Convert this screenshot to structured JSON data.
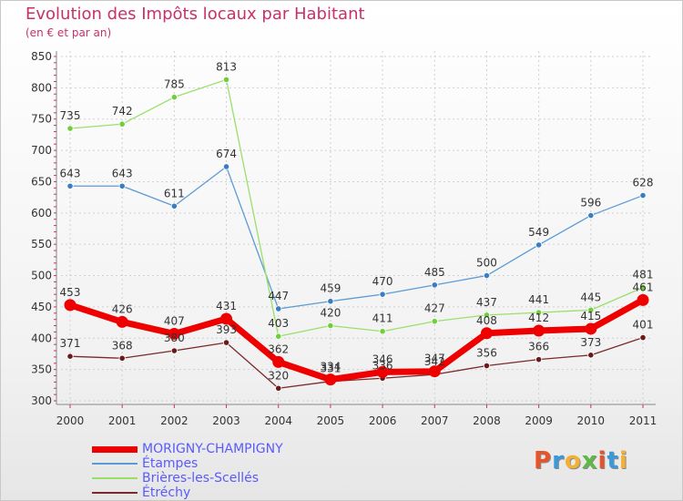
{
  "title": "Evolution des Impôts locaux par Habitant",
  "subtitle": "(en € et par an)",
  "logo_text": "Proxiti",
  "logo_colors": [
    "#e8542a",
    "#3a9ad9",
    "#f2b134",
    "#5fb848",
    "#e8542a",
    "#3a9ad9",
    "#f2b134"
  ],
  "chart_data": {
    "type": "line",
    "x": [
      "2000",
      "2001",
      "2002",
      "2003",
      "2004",
      "2005",
      "2006",
      "2007",
      "2008",
      "2009",
      "2010",
      "2011"
    ],
    "ylim": [
      300,
      850
    ],
    "yticks": [
      "300",
      "350",
      "400",
      "450",
      "500",
      "550",
      "600",
      "650",
      "700",
      "750",
      "800",
      "850"
    ],
    "grid": true,
    "legend_position": "bottom-left",
    "series": [
      {
        "name": "MORIGNY-CHAMPIGNY",
        "color": "#ee0000",
        "emphasis": true,
        "values": [
          453,
          426,
          407,
          431,
          362,
          334,
          346,
          347,
          408,
          412,
          415,
          461
        ],
        "labels": [
          "453",
          "426",
          "407",
          "431",
          "362",
          "334",
          "346",
          "347",
          "408",
          "412",
          "415",
          "461"
        ]
      },
      {
        "name": "Étampes",
        "color": "#5b9bd5",
        "point_color": "#3a7dc0",
        "emphasis": false,
        "values": [
          643,
          643,
          611,
          674,
          447,
          459,
          470,
          485,
          500,
          549,
          596,
          628
        ],
        "labels": [
          "643",
          "643",
          "611",
          "674",
          "447",
          "459",
          "470",
          "485",
          "500",
          "549",
          "596",
          "628"
        ]
      },
      {
        "name": "Brières-les-Scellés",
        "color": "#99e06a",
        "point_color": "#6fcf3a",
        "emphasis": false,
        "values": [
          735,
          742,
          785,
          813,
          403,
          420,
          411,
          427,
          437,
          441,
          445,
          481
        ],
        "labels": [
          "735",
          "742",
          "785",
          "813",
          "403",
          "420",
          "411",
          "427",
          "437",
          "441",
          "445",
          "481"
        ]
      },
      {
        "name": "Étréchy",
        "color": "#7a2a2a",
        "point_color": "#6a1a1a",
        "emphasis": false,
        "values": [
          371,
          368,
          380,
          393,
          320,
          331,
          336,
          342,
          356,
          366,
          373,
          401
        ],
        "labels": [
          "371",
          "368",
          "380",
          "393",
          "320",
          "331",
          "336",
          "342",
          "356",
          "366",
          "373",
          "401"
        ]
      }
    ]
  }
}
